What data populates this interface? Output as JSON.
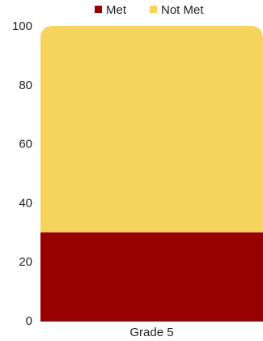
{
  "chart_data": {
    "type": "bar",
    "stacked": true,
    "categories": [
      "Grade 5"
    ],
    "series": [
      {
        "name": "Met",
        "values": [
          30
        ],
        "color": "#990000"
      },
      {
        "name": "Not Met",
        "values": [
          70
        ],
        "color": "#F5D35C"
      }
    ],
    "ylim": [
      0,
      100
    ],
    "yticks": [
      "0",
      "20",
      "40",
      "60",
      "80",
      "100"
    ],
    "grid": false,
    "legend_position": "top-center"
  },
  "colors": {
    "axis": "#333333",
    "text": "#222222"
  }
}
